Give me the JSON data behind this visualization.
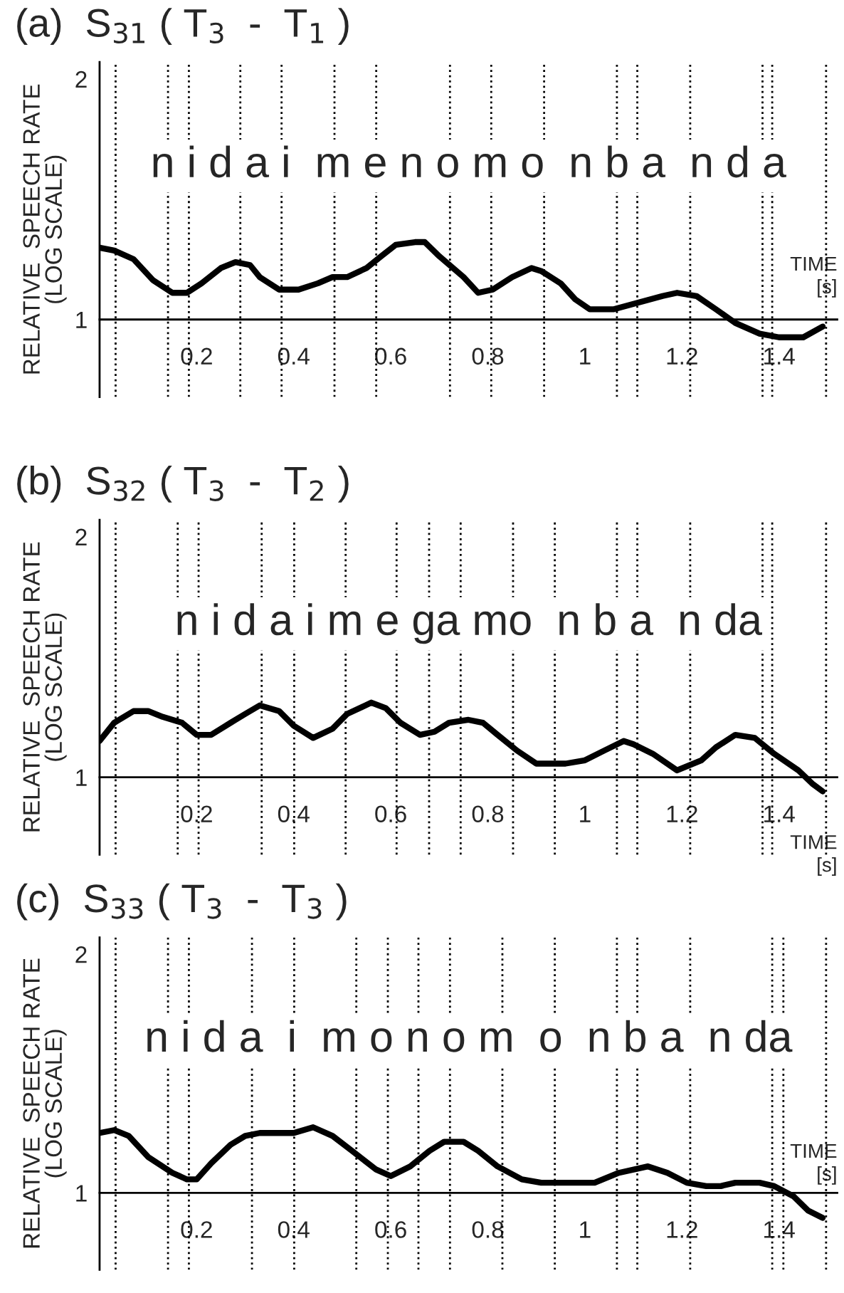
{
  "chart_data": [
    {
      "type": "line",
      "title": "(a)  S$_{31}$ ( T$_{3}$  -  T$_{1}$ )",
      "ylabel": "RELATIVE  SPEECH RATE\n(LOG SCALE)",
      "xlabel": "TIME\n[s]",
      "log": true,
      "xlim": [
        0,
        1.52
      ],
      "ylim": [
        0.8,
        2.1
      ],
      "xticks": [
        0.2,
        0.4,
        0.6,
        0.8,
        1,
        1.2,
        1.4
      ],
      "yticks": [
        1,
        2
      ],
      "line_style": "solid",
      "marker": "none",
      "annotations": [
        "n i d a i  m e n o m o  n b a  n d a"
      ],
      "ref_lines": [
        {
          "axis": "x",
          "value": 0.033,
          "line_style": "dotted",
          "color": "#000000"
        },
        {
          "axis": "x",
          "value": 0.141,
          "line_style": "dotted",
          "color": "#000000"
        },
        {
          "axis": "x",
          "value": 0.184,
          "line_style": "dotted",
          "color": "#000000"
        },
        {
          "axis": "x",
          "value": 0.29,
          "line_style": "dotted",
          "color": "#000000"
        },
        {
          "axis": "x",
          "value": 0.375,
          "line_style": "dotted",
          "color": "#000000"
        },
        {
          "axis": "x",
          "value": 0.484,
          "line_style": "dotted",
          "color": "#000000"
        },
        {
          "axis": "x",
          "value": 0.57,
          "line_style": "dotted",
          "color": "#000000"
        },
        {
          "axis": "x",
          "value": 0.722,
          "line_style": "dotted",
          "color": "#000000"
        },
        {
          "axis": "x",
          "value": 0.807,
          "line_style": "dotted",
          "color": "#000000"
        },
        {
          "axis": "x",
          "value": 0.916,
          "line_style": "dotted",
          "color": "#000000"
        },
        {
          "axis": "x",
          "value": 1.066,
          "line_style": "dotted",
          "color": "#000000"
        },
        {
          "axis": "x",
          "value": 1.108,
          "line_style": "dotted",
          "color": "#000000"
        },
        {
          "axis": "x",
          "value": 1.217,
          "line_style": "dotted",
          "color": "#000000"
        },
        {
          "axis": "x",
          "value": 1.366,
          "line_style": "dotted",
          "color": "#000000"
        },
        {
          "axis": "x",
          "value": 1.386,
          "line_style": "dotted",
          "color": "#000000"
        },
        {
          "axis": "x",
          "value": 1.497,
          "line_style": "dotted",
          "color": "#000000"
        }
      ],
      "series": [
        {
          "color": "#000000",
          "x": [
            0.0,
            0.03,
            0.07,
            0.11,
            0.15,
            0.18,
            0.21,
            0.25,
            0.28,
            0.31,
            0.33,
            0.37,
            0.41,
            0.45,
            0.48,
            0.51,
            0.55,
            0.58,
            0.61,
            0.65,
            0.67,
            0.7,
            0.75,
            0.78,
            0.81,
            0.85,
            0.89,
            0.91,
            0.95,
            0.98,
            1.01,
            1.06,
            1.11,
            1.16,
            1.19,
            1.23,
            1.27,
            1.31,
            1.36,
            1.4,
            1.45,
            1.49
          ],
          "values": [
            1.23,
            1.22,
            1.19,
            1.12,
            1.08,
            1.08,
            1.11,
            1.16,
            1.18,
            1.17,
            1.13,
            1.09,
            1.09,
            1.11,
            1.13,
            1.13,
            1.16,
            1.2,
            1.24,
            1.25,
            1.25,
            1.2,
            1.13,
            1.08,
            1.09,
            1.13,
            1.16,
            1.15,
            1.11,
            1.06,
            1.03,
            1.03,
            1.05,
            1.07,
            1.08,
            1.07,
            1.03,
            0.99,
            0.96,
            0.95,
            0.95,
            0.98
          ]
        }
      ]
    },
    {
      "type": "line",
      "title": "(b)  S$_{32}$ ( T$_{3}$  -  T$_{2}$ )",
      "ylabel": "RELATIVE  SPEECH RATE\n(LOG SCALE)",
      "xlabel": "TIME\n[s]",
      "log": true,
      "xlim": [
        0,
        1.52
      ],
      "ylim": [
        0.8,
        2.1
      ],
      "xticks": [
        0.2,
        0.4,
        0.6,
        0.8,
        1,
        1.2,
        1.4
      ],
      "yticks": [
        1,
        2
      ],
      "line_style": "solid",
      "marker": "none",
      "annotations": [
        "n i d a i m e ga mo  n b a  n da"
      ],
      "ref_lines": [
        {
          "axis": "x",
          "value": 0.033,
          "line_style": "dotted",
          "color": "#000000"
        },
        {
          "axis": "x",
          "value": 0.161,
          "line_style": "dotted",
          "color": "#000000"
        },
        {
          "axis": "x",
          "value": 0.204,
          "line_style": "dotted",
          "color": "#000000"
        },
        {
          "axis": "x",
          "value": 0.334,
          "line_style": "dotted",
          "color": "#000000"
        },
        {
          "axis": "x",
          "value": 0.401,
          "line_style": "dotted",
          "color": "#000000"
        },
        {
          "axis": "x",
          "value": 0.507,
          "line_style": "dotted",
          "color": "#000000"
        },
        {
          "axis": "x",
          "value": 0.612,
          "line_style": "dotted",
          "color": "#000000"
        },
        {
          "axis": "x",
          "value": 0.679,
          "line_style": "dotted",
          "color": "#000000"
        },
        {
          "axis": "x",
          "value": 0.744,
          "line_style": "dotted",
          "color": "#000000"
        },
        {
          "axis": "x",
          "value": 0.852,
          "line_style": "dotted",
          "color": "#000000"
        },
        {
          "axis": "x",
          "value": 0.938,
          "line_style": "dotted",
          "color": "#000000"
        },
        {
          "axis": "x",
          "value": 1.066,
          "line_style": "dotted",
          "color": "#000000"
        },
        {
          "axis": "x",
          "value": 1.108,
          "line_style": "dotted",
          "color": "#000000"
        },
        {
          "axis": "x",
          "value": 1.217,
          "line_style": "dotted",
          "color": "#000000"
        },
        {
          "axis": "x",
          "value": 1.366,
          "line_style": "dotted",
          "color": "#000000"
        },
        {
          "axis": "x",
          "value": 1.386,
          "line_style": "dotted",
          "color": "#000000"
        },
        {
          "axis": "x",
          "value": 1.497,
          "line_style": "dotted",
          "color": "#000000"
        }
      ],
      "series": [
        {
          "color": "#000000",
          "x": [
            0.0,
            0.03,
            0.07,
            0.1,
            0.13,
            0.17,
            0.2,
            0.23,
            0.27,
            0.3,
            0.33,
            0.37,
            0.4,
            0.44,
            0.48,
            0.51,
            0.56,
            0.59,
            0.62,
            0.66,
            0.69,
            0.72,
            0.76,
            0.79,
            0.82,
            0.86,
            0.9,
            0.96,
            1.0,
            1.04,
            1.08,
            1.1,
            1.14,
            1.19,
            1.24,
            1.27,
            1.31,
            1.35,
            1.39,
            1.44,
            1.47,
            1.49
          ],
          "values": [
            1.11,
            1.17,
            1.21,
            1.21,
            1.19,
            1.17,
            1.13,
            1.13,
            1.17,
            1.2,
            1.23,
            1.21,
            1.16,
            1.12,
            1.15,
            1.2,
            1.24,
            1.22,
            1.17,
            1.13,
            1.14,
            1.17,
            1.18,
            1.17,
            1.13,
            1.08,
            1.04,
            1.04,
            1.05,
            1.08,
            1.11,
            1.1,
            1.07,
            1.02,
            1.05,
            1.09,
            1.13,
            1.12,
            1.07,
            1.02,
            0.98,
            0.96
          ]
        }
      ]
    },
    {
      "type": "line",
      "title": "(c)  S$_{33}$ ( T$_{3}$  -  T$_{3}$ )",
      "ylabel": "RELATIVE  SPEECH RATE\n(LOG SCALE)",
      "xlabel": "TIME\n[s]",
      "log": true,
      "xlim": [
        0,
        1.52
      ],
      "ylim": [
        0.8,
        2.1
      ],
      "xticks": [
        0.2,
        0.4,
        0.6,
        0.8,
        1,
        1.2,
        1.4
      ],
      "yticks": [
        1,
        2
      ],
      "line_style": "solid",
      "marker": "none",
      "annotations": [
        "n i d a  i  m o n o m  o  n b a  n da"
      ],
      "ref_lines": [
        {
          "axis": "x",
          "value": 0.033,
          "line_style": "dotted",
          "color": "#000000"
        },
        {
          "axis": "x",
          "value": 0.141,
          "line_style": "dotted",
          "color": "#000000"
        },
        {
          "axis": "x",
          "value": 0.184,
          "line_style": "dotted",
          "color": "#000000"
        },
        {
          "axis": "x",
          "value": 0.314,
          "line_style": "dotted",
          "color": "#000000"
        },
        {
          "axis": "x",
          "value": 0.401,
          "line_style": "dotted",
          "color": "#000000"
        },
        {
          "axis": "x",
          "value": 0.529,
          "line_style": "dotted",
          "color": "#000000"
        },
        {
          "axis": "x",
          "value": 0.594,
          "line_style": "dotted",
          "color": "#000000"
        },
        {
          "axis": "x",
          "value": 0.657,
          "line_style": "dotted",
          "color": "#000000"
        },
        {
          "axis": "x",
          "value": 0.722,
          "line_style": "dotted",
          "color": "#000000"
        },
        {
          "axis": "x",
          "value": 0.83,
          "line_style": "dotted",
          "color": "#000000"
        },
        {
          "axis": "x",
          "value": 0.938,
          "line_style": "dotted",
          "color": "#000000"
        },
        {
          "axis": "x",
          "value": 1.066,
          "line_style": "dotted",
          "color": "#000000"
        },
        {
          "axis": "x",
          "value": 1.108,
          "line_style": "dotted",
          "color": "#000000"
        },
        {
          "axis": "x",
          "value": 1.217,
          "line_style": "dotted",
          "color": "#000000"
        },
        {
          "axis": "x",
          "value": 1.386,
          "line_style": "dotted",
          "color": "#000000"
        },
        {
          "axis": "x",
          "value": 1.409,
          "line_style": "dotted",
          "color": "#000000"
        },
        {
          "axis": "x",
          "value": 1.497,
          "line_style": "dotted",
          "color": "#000000"
        }
      ],
      "series": [
        {
          "color": "#000000",
          "x": [
            0.0,
            0.03,
            0.06,
            0.1,
            0.15,
            0.18,
            0.2,
            0.23,
            0.27,
            0.3,
            0.33,
            0.4,
            0.44,
            0.48,
            0.52,
            0.57,
            0.6,
            0.64,
            0.68,
            0.71,
            0.75,
            0.78,
            0.82,
            0.87,
            0.91,
            0.98,
            1.02,
            1.07,
            1.13,
            1.17,
            1.21,
            1.25,
            1.28,
            1.31,
            1.36,
            1.39,
            1.43,
            1.46,
            1.49
          ],
          "values": [
            1.19,
            1.2,
            1.18,
            1.11,
            1.06,
            1.04,
            1.04,
            1.09,
            1.15,
            1.18,
            1.19,
            1.19,
            1.21,
            1.18,
            1.13,
            1.07,
            1.05,
            1.08,
            1.13,
            1.16,
            1.16,
            1.13,
            1.08,
            1.04,
            1.03,
            1.03,
            1.03,
            1.06,
            1.08,
            1.06,
            1.03,
            1.02,
            1.02,
            1.03,
            1.03,
            1.02,
            0.99,
            0.95,
            0.93
          ]
        }
      ]
    }
  ]
}
